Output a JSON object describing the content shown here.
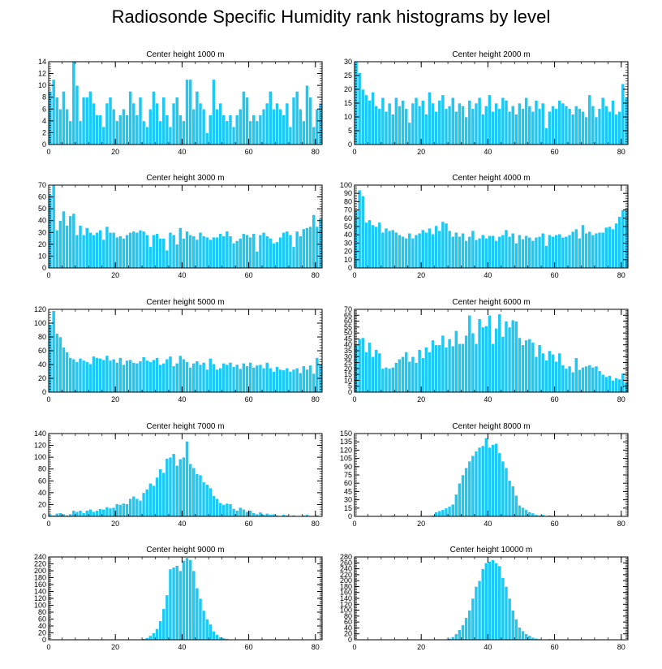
{
  "title": "Radiosonde Specific Humidity rank histograms by level",
  "colors": {
    "bar": "#1ec8f4",
    "bar_edge": "#ffffff",
    "axis": "#000000"
  },
  "chart_data": [
    {
      "type": "bar",
      "title": "Center height 1000 m",
      "xlim": [
        0,
        82
      ],
      "ylim": [
        0,
        14
      ],
      "xticks": [
        0,
        20,
        40,
        60,
        80
      ],
      "yticks": [
        0,
        2,
        4,
        6,
        8,
        10,
        12,
        14
      ],
      "values": [
        9,
        11,
        8,
        6,
        9,
        6,
        4,
        14,
        10,
        4,
        8,
        8,
        9,
        7,
        5,
        5,
        3,
        7,
        8,
        6,
        4,
        5,
        6,
        5,
        9,
        7,
        5,
        8,
        4,
        3,
        6,
        9,
        7,
        4,
        8,
        5,
        3,
        7,
        8,
        5,
        4,
        11,
        11,
        6,
        9,
        7,
        6,
        2,
        5,
        11,
        6,
        7,
        5,
        4,
        5,
        3,
        5,
        6,
        9,
        8,
        4,
        5,
        4,
        5,
        6,
        7,
        9,
        6,
        7,
        6,
        5,
        7,
        3,
        8,
        9,
        6,
        4,
        10,
        8,
        3,
        6,
        7
      ]
    },
    {
      "type": "bar",
      "title": "Center height 2000 m",
      "xlim": [
        0,
        82
      ],
      "ylim": [
        0,
        30
      ],
      "xticks": [
        0,
        20,
        40,
        60,
        80
      ],
      "yticks": [
        0,
        5,
        10,
        15,
        20,
        25,
        30
      ],
      "values": [
        30,
        26,
        20,
        18,
        16,
        19,
        14,
        13,
        17,
        12,
        15,
        11,
        17,
        14,
        16,
        13,
        8,
        15,
        17,
        14,
        16,
        11,
        19,
        15,
        12,
        16,
        18,
        13,
        14,
        17,
        12,
        15,
        14,
        10,
        16,
        13,
        15,
        17,
        11,
        14,
        18,
        12,
        15,
        13,
        17,
        16,
        12,
        14,
        11,
        15,
        13,
        17,
        14,
        12,
        16,
        13,
        15,
        6,
        12,
        14,
        13,
        16,
        15,
        14,
        13,
        11,
        14,
        13,
        12,
        10,
        18,
        14,
        10,
        13,
        17,
        14,
        12,
        16,
        11,
        12,
        22,
        17
      ]
    },
    {
      "type": "bar",
      "title": "Center height 3000 m",
      "xlim": [
        0,
        82
      ],
      "ylim": [
        0,
        70
      ],
      "xticks": [
        0,
        20,
        40,
        60,
        80
      ],
      "yticks": [
        0,
        10,
        20,
        30,
        40,
        50,
        60,
        70
      ],
      "values": [
        62,
        70,
        32,
        40,
        48,
        36,
        44,
        46,
        28,
        36,
        28,
        34,
        30,
        28,
        30,
        32,
        24,
        35,
        30,
        30,
        26,
        27,
        25,
        28,
        30,
        31,
        30,
        32,
        31,
        28,
        18,
        28,
        29,
        25,
        25,
        15,
        30,
        28,
        20,
        34,
        25,
        31,
        28,
        27,
        24,
        30,
        27,
        26,
        24,
        26,
        26,
        29,
        27,
        31,
        27,
        21,
        23,
        25,
        29,
        28,
        26,
        29,
        14,
        28,
        30,
        27,
        25,
        21,
        22,
        26,
        30,
        31,
        28,
        18,
        31,
        27,
        33,
        34,
        35,
        45,
        35,
        42
      ]
    },
    {
      "type": "bar",
      "title": "Center height 4000 m",
      "xlim": [
        0,
        82
      ],
      "ylim": [
        0,
        100
      ],
      "xticks": [
        0,
        20,
        40,
        60,
        80
      ],
      "yticks": [
        0,
        10,
        20,
        30,
        40,
        50,
        60,
        70,
        80,
        90,
        100
      ],
      "values": [
        70,
        94,
        87,
        55,
        58,
        52,
        50,
        55,
        43,
        48,
        45,
        46,
        43,
        40,
        38,
        36,
        42,
        36,
        40,
        42,
        46,
        43,
        48,
        41,
        51,
        45,
        56,
        54,
        45,
        38,
        43,
        38,
        42,
        33,
        38,
        45,
        34,
        36,
        40,
        36,
        39,
        39,
        33,
        38,
        40,
        46,
        38,
        42,
        30,
        40,
        35,
        39,
        37,
        33,
        37,
        38,
        42,
        27,
        40,
        38,
        40,
        41,
        37,
        38,
        40,
        44,
        47,
        36,
        52,
        42,
        44,
        40,
        42,
        43,
        43,
        49,
        50,
        47,
        54,
        62,
        70,
        72
      ]
    },
    {
      "type": "bar",
      "title": "Center height 5000 m",
      "xlim": [
        0,
        82
      ],
      "ylim": [
        0,
        120
      ],
      "xticks": [
        0,
        20,
        40,
        60,
        80
      ],
      "yticks": [
        0,
        20,
        40,
        60,
        80,
        100,
        120
      ],
      "values": [
        98,
        118,
        85,
        80,
        65,
        58,
        50,
        48,
        44,
        49,
        46,
        44,
        41,
        52,
        50,
        49,
        47,
        53,
        46,
        48,
        43,
        50,
        40,
        46,
        47,
        43,
        42,
        45,
        51,
        46,
        44,
        47,
        50,
        40,
        42,
        48,
        52,
        38,
        42,
        53,
        48,
        44,
        36,
        42,
        45,
        40,
        43,
        33,
        49,
        41,
        33,
        35,
        42,
        40,
        43,
        37,
        40,
        34,
        42,
        38,
        43,
        36,
        39,
        40,
        35,
        43,
        35,
        30,
        37,
        33,
        32,
        35,
        30,
        33,
        35,
        28,
        38,
        33,
        39,
        27,
        50,
        41
      ]
    },
    {
      "type": "bar",
      "title": "Center height 6000 m",
      "xlim": [
        0,
        82
      ],
      "ylim": [
        0,
        70
      ],
      "xticks": [
        0,
        20,
        40,
        60,
        80
      ],
      "yticks": [
        0,
        5,
        10,
        15,
        20,
        25,
        30,
        35,
        40,
        45,
        50,
        55,
        60,
        65,
        70
      ],
      "values": [
        40,
        45,
        46,
        34,
        42,
        30,
        36,
        33,
        20,
        21,
        20,
        21,
        25,
        28,
        30,
        34,
        26,
        30,
        25,
        36,
        29,
        38,
        34,
        44,
        40,
        40,
        48,
        38,
        45,
        39,
        52,
        41,
        41,
        48,
        65,
        50,
        41,
        62,
        55,
        56,
        65,
        41,
        54,
        66,
        47,
        60,
        55,
        61,
        60,
        46,
        40,
        44,
        45,
        42,
        30,
        40,
        33,
        27,
        35,
        32,
        26,
        33,
        23,
        20,
        22,
        17,
        29,
        19,
        21,
        22,
        23,
        21,
        22,
        18,
        15,
        13,
        14,
        10,
        12,
        11,
        16,
        8
      ]
    },
    {
      "type": "bar",
      "title": "Center height 7000 m",
      "xlim": [
        0,
        82
      ],
      "ylim": [
        0,
        140
      ],
      "xticks": [
        0,
        20,
        40,
        60,
        80
      ],
      "yticks": [
        0,
        20,
        40,
        60,
        80,
        100,
        120,
        140
      ],
      "values": [
        3,
        2,
        5,
        6,
        4,
        2,
        4,
        10,
        8,
        10,
        6,
        10,
        12,
        8,
        10,
        13,
        12,
        16,
        14,
        15,
        21,
        20,
        22,
        21,
        30,
        34,
        30,
        27,
        40,
        46,
        56,
        52,
        66,
        80,
        74,
        98,
        100,
        106,
        86,
        97,
        100,
        127,
        89,
        82,
        72,
        70,
        58,
        54,
        48,
        35,
        30,
        23,
        20,
        22,
        21,
        13,
        10,
        15,
        12,
        8,
        10,
        6,
        4,
        7,
        3,
        5,
        3,
        4,
        2,
        1,
        3,
        2,
        1,
        2,
        1,
        1,
        2,
        3,
        1,
        1,
        2,
        1
      ]
    },
    {
      "type": "bar",
      "title": "Center height 8000 m",
      "xlim": [
        0,
        82
      ],
      "ylim": [
        0,
        150
      ],
      "xticks": [
        0,
        20,
        40,
        60,
        80
      ],
      "yticks": [
        0,
        15,
        30,
        45,
        60,
        75,
        90,
        105,
        120,
        135,
        150
      ],
      "values": [
        0,
        0,
        0,
        0,
        0,
        0,
        0,
        0,
        1,
        0,
        0,
        2,
        0,
        0,
        0,
        1,
        0,
        0,
        1,
        0,
        0,
        1,
        1,
        2,
        8,
        10,
        12,
        15,
        18,
        22,
        40,
        60,
        75,
        88,
        100,
        110,
        118,
        125,
        128,
        142,
        125,
        130,
        132,
        115,
        100,
        88,
        65,
        55,
        38,
        20,
        16,
        12,
        8,
        6,
        3,
        2,
        3,
        1,
        2,
        1,
        0,
        1,
        0,
        0,
        0,
        0,
        0,
        0,
        0,
        0,
        0,
        0,
        0,
        0,
        0,
        0,
        0,
        0,
        0,
        0,
        0,
        0
      ]
    },
    {
      "type": "bar",
      "title": "Center height 9000 m",
      "xlim": [
        0,
        82
      ],
      "ylim": [
        0,
        240
      ],
      "xticks": [
        0,
        20,
        40,
        60,
        80
      ],
      "yticks": [
        0,
        20,
        40,
        60,
        80,
        100,
        120,
        140,
        160,
        180,
        200,
        220,
        240
      ],
      "values": [
        0,
        0,
        0,
        0,
        0,
        0,
        0,
        0,
        0,
        0,
        0,
        0,
        0,
        0,
        0,
        0,
        0,
        0,
        0,
        0,
        0,
        0,
        0,
        0,
        0,
        0,
        0,
        1,
        3,
        6,
        12,
        20,
        32,
        55,
        90,
        130,
        205,
        210,
        215,
        200,
        230,
        238,
        232,
        200,
        150,
        120,
        85,
        60,
        45,
        25,
        15,
        8,
        5,
        3,
        2,
        1,
        0,
        0,
        0,
        0,
        0,
        0,
        0,
        0,
        0,
        0,
        0,
        0,
        0,
        0,
        0,
        0,
        0,
        0,
        0,
        0,
        0,
        0,
        0,
        0,
        0,
        0
      ]
    },
    {
      "type": "bar",
      "title": "Center height 10000 m",
      "xlim": [
        0,
        82
      ],
      "ylim": [
        0,
        280
      ],
      "xticks": [
        0,
        20,
        40,
        60,
        80
      ],
      "yticks": [
        0,
        20,
        40,
        60,
        80,
        100,
        120,
        140,
        160,
        180,
        200,
        220,
        240,
        260,
        280
      ],
      "values": [
        0,
        0,
        0,
        0,
        0,
        0,
        0,
        0,
        0,
        0,
        0,
        0,
        0,
        0,
        0,
        0,
        0,
        0,
        0,
        0,
        0,
        0,
        0,
        0,
        0,
        0,
        1,
        2,
        5,
        10,
        20,
        34,
        50,
        75,
        100,
        140,
        180,
        200,
        240,
        260,
        265,
        270,
        260,
        250,
        210,
        180,
        140,
        100,
        70,
        42,
        30,
        20,
        14,
        8,
        5,
        3,
        2,
        1,
        3,
        1,
        2,
        0,
        0,
        0,
        0,
        0,
        0,
        0,
        0,
        0,
        0,
        0,
        0,
        0,
        0,
        0,
        0,
        0,
        0,
        0,
        0,
        0
      ]
    }
  ]
}
